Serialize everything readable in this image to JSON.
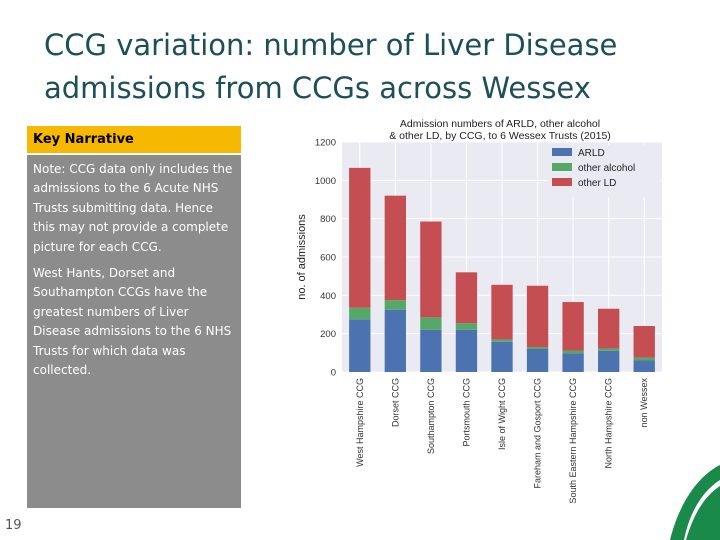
{
  "slide": {
    "title": "CCG variation: number of Liver Disease admissions from CCGs across Wessex",
    "number": "19"
  },
  "narrative": {
    "header": "Key Narrative",
    "paragraphs": [
      "Note: CCG data only includes the admissions to the 6 Acute NHS Trusts submitting data. Hence this may not provide a complete picture for each CCG.",
      "West Hants, Dorset and Southampton CCGs have the greatest numbers of Liver Disease admissions to the 6 NHS Trusts for which data was collected."
    ]
  },
  "colors": {
    "ARLD": "#4c72b0",
    "other alcohol": "#55a868",
    "other LD": "#c44e52",
    "plot_bg": "#eaeaf2",
    "title_text": "#1c4f5a",
    "narrative_header_bg": "#f6b800",
    "narrative_body_bg": "#8c8c8c",
    "logo_green": "#1a8a4a"
  },
  "chart_data": {
    "type": "bar",
    "stacked": true,
    "title": "Admission numbers of ARLD, other alcohol & other LD, by CCG, to 6 Wessex Trusts (2015)",
    "title_lines": [
      "Admission numbers of ARLD, other alcohol",
      "& other LD, by CCG, to 6 Wessex Trusts (2015)"
    ],
    "xlabel": "",
    "ylabel": "no. of admissions",
    "ylim": [
      0,
      1200
    ],
    "yticks": [
      0,
      200,
      400,
      600,
      800,
      1000,
      1200
    ],
    "grid": true,
    "legend_position": "top-right",
    "categories": [
      "West Hampshire CCG",
      "Dorset CCG",
      "Southampton CCG",
      "Portsmouth CCG",
      "Isle of Wight CCG",
      "Fareham and Gosport CCG",
      "South Eastern Hampshire CCG",
      "North Hampshire CCG",
      "non Wessex"
    ],
    "series": [
      {
        "name": "ARLD",
        "values": [
          275,
          325,
          220,
          220,
          158,
          120,
          97,
          110,
          60
        ]
      },
      {
        "name": "other alcohol",
        "values": [
          60,
          50,
          65,
          35,
          12,
          10,
          15,
          13,
          15
        ]
      },
      {
        "name": "other LD",
        "values": [
          730,
          545,
          500,
          265,
          285,
          320,
          253,
          207,
          165
        ]
      }
    ]
  }
}
